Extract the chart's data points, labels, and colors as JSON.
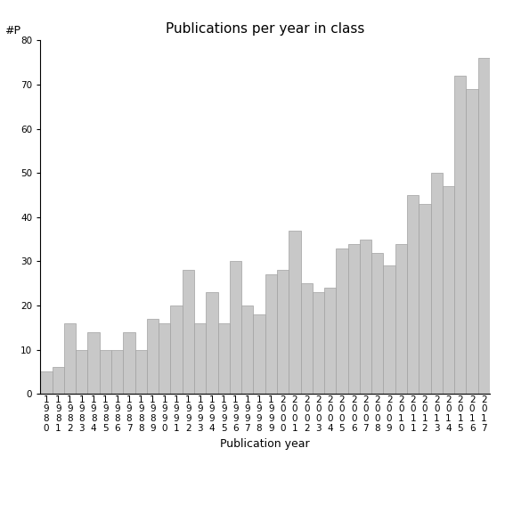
{
  "title": "Publications per year in class",
  "xlabel": "Publication year",
  "ylabel": "#P",
  "years": [
    "1980",
    "1981",
    "1982",
    "1983",
    "1984",
    "1985",
    "1986",
    "1987",
    "1988",
    "1989",
    "1990",
    "1991",
    "1992",
    "1993",
    "1994",
    "1995",
    "1996",
    "1997",
    "1998",
    "1999",
    "2000",
    "2001",
    "2002",
    "2003",
    "2004",
    "2005",
    "2006",
    "2007",
    "2008",
    "2009",
    "2010",
    "2011",
    "2012",
    "2013",
    "2014",
    "2015",
    "2016",
    "2017"
  ],
  "values": [
    5,
    6,
    16,
    10,
    14,
    10,
    10,
    14,
    10,
    17,
    16,
    20,
    28,
    16,
    23,
    16,
    30,
    20,
    18,
    27,
    28,
    37,
    25,
    23,
    24,
    33,
    34,
    35,
    32,
    29,
    34,
    45,
    43,
    50,
    47,
    72,
    69,
    76
  ],
  "bar_color": "#c8c8c8",
  "bar_edgecolor": "#a0a0a0",
  "ylim": [
    0,
    80
  ],
  "yticks": [
    0,
    10,
    20,
    30,
    40,
    50,
    60,
    70,
    80
  ],
  "background_color": "#ffffff",
  "title_fontsize": 11,
  "axis_label_fontsize": 9,
  "tick_label_fontsize": 7.5
}
